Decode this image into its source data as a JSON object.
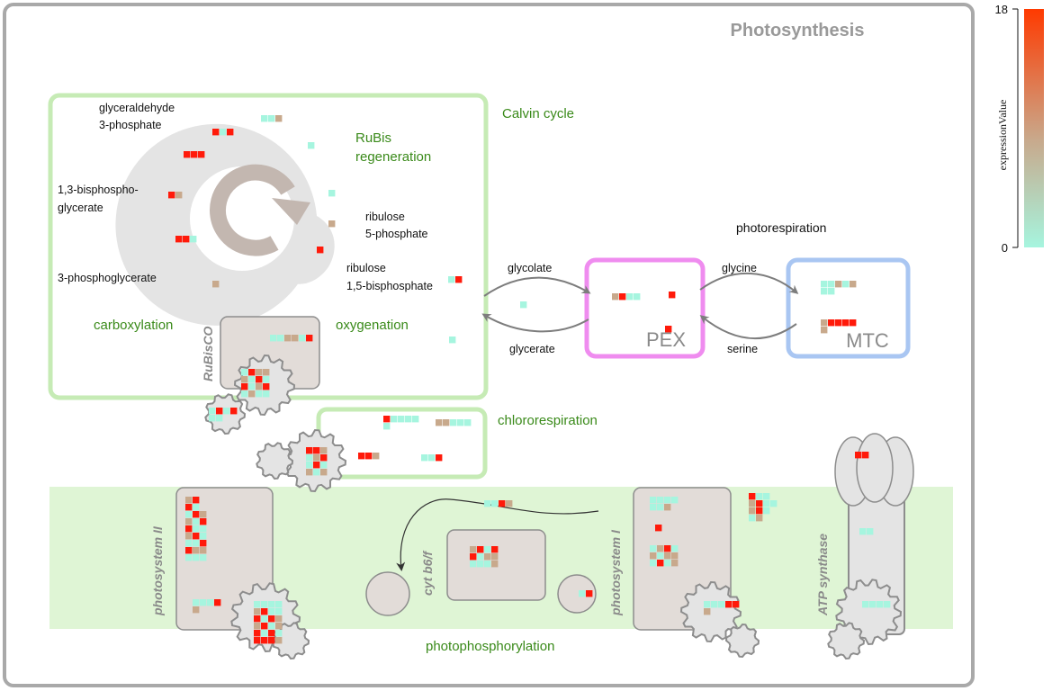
{
  "title": "Photosynthesis",
  "colors": {
    "low": "#a6f5df",
    "mid": "#c8a98c",
    "high": "#ff1a0a",
    "calvin_box": "#c6ebb5",
    "pex_box": "#ef8cef",
    "mtc_box": "#a9c6f2",
    "membrane": "#dff5d5",
    "gray_disc": "#e4e4e4",
    "complex_fill": "#e2dcd8"
  },
  "labels": {
    "calvin_cycle": "Calvin cycle",
    "rubis_regeneration_1": "RuBis",
    "rubis_regeneration_2": "regeneration",
    "carboxylation": "carboxylation",
    "oxygenation": "oxygenation",
    "rubisco": "RuBisCO",
    "glyceraldehyde_1": "glyceraldehyde",
    "glyceraldehyde_2": "3-phosphate",
    "bisphospho_1": "1,3-bisphospho-",
    "bisphospho_2": "glycerate",
    "phosphoglycerate": "3-phosphoglycerate",
    "ribulose5p_1": "ribulose",
    "ribulose5p_2": "5-phosphate",
    "ribulose15bp_1": "ribulose",
    "ribulose15bp_2": "1,5-bisphosphate",
    "photorespiration": "photorespiration",
    "glycolate": "glycolate",
    "glycerate": "glycerate",
    "glycine": "glycine",
    "serine": "serine",
    "pex": "PEX",
    "mtc": "MTC",
    "chlororespiration": "chlororespiration",
    "photosystem_ii": "photosystem II",
    "cyt_b6f": "cyt b6/f",
    "photosystem_i": "photosystem I",
    "atp_synthase": "ATP synthase",
    "photophosphorylation": "photophosphorylation"
  },
  "legend": {
    "title": "expressionValue",
    "max": 18,
    "min": 0
  }
}
